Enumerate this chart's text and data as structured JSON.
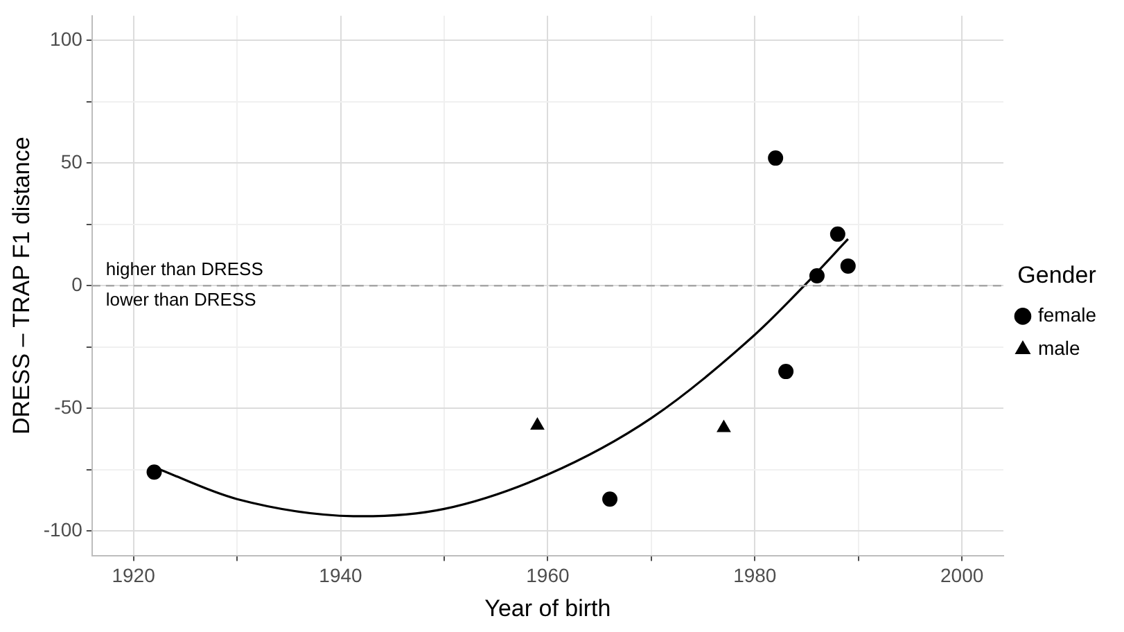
{
  "chart_data": {
    "type": "scatter",
    "xlabel": "Year of birth",
    "ylabel": "DRESS – TRAP F1 distance",
    "legend_title": "Gender",
    "legend": "right",
    "grid": true,
    "xlim": [
      1916,
      2004
    ],
    "ylim": [
      -110,
      110
    ],
    "xticks": [
      1920,
      {
        "value": 1930,
        "label": null
      },
      1940,
      {
        "value": 1950,
        "label": null
      },
      1960,
      {
        "value": 1970,
        "label": null
      },
      1980,
      {
        "value": 1990,
        "label": null
      },
      2000
    ],
    "yticks": [
      -100,
      {
        "value": -75,
        "label": null
      },
      -50,
      {
        "value": -25,
        "label": null
      },
      0,
      {
        "value": 25,
        "label": null
      },
      50,
      {
        "value": 75,
        "label": null
      },
      100
    ],
    "ref_lines": [
      {
        "axis": "y",
        "value": 0,
        "color": "#a6a6a6",
        "line_style": "dashed"
      }
    ],
    "annotations": [
      "higher than DRESS",
      "lower than DRESS"
    ],
    "series": [
      {
        "name": "female",
        "type": "scatter",
        "marker": "circle",
        "color": "#000000",
        "x": [
          1922,
          1966,
          1982,
          1983,
          1986,
          1988,
          1989
        ],
        "values": [
          -76,
          -87,
          52,
          -35,
          4,
          21,
          8
        ]
      },
      {
        "name": "male",
        "type": "scatter",
        "marker": "triangle",
        "color": "#000000",
        "x": [
          1959,
          1977
        ],
        "values": [
          -57,
          -58
        ]
      },
      {
        "type": "line",
        "marker": "none",
        "color": "#000000",
        "x": [
          1922,
          1930,
          1942,
          1950,
          1960,
          1970,
          1980,
          1985,
          1989
        ],
        "values": [
          -74,
          -87,
          -94,
          -91,
          -77,
          -54,
          -20,
          1,
          19
        ]
      }
    ]
  }
}
